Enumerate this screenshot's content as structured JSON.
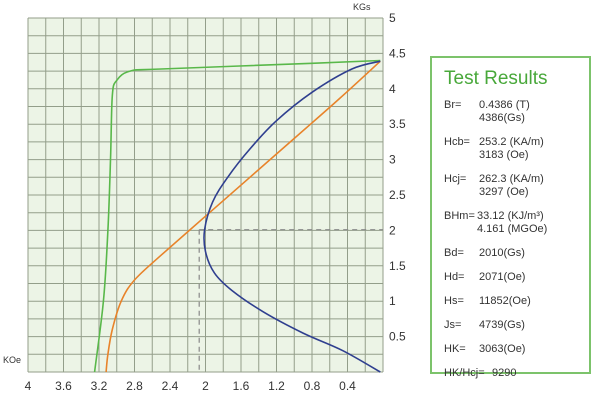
{
  "chart_data": {
    "type": "line",
    "x_axis": {
      "unit": "KOe",
      "range": [
        0,
        4
      ],
      "reversed": true,
      "ticks": [
        "4",
        "3.6",
        "3.2",
        "2.8",
        "2.4",
        "2",
        "1.6",
        "1.2",
        "0.8",
        "0.4"
      ]
    },
    "y_axis": {
      "unit": "KGs",
      "range": [
        0,
        5
      ],
      "position": "right",
      "ticks": [
        "0.5",
        "1",
        "1.5",
        "2",
        "2.5",
        "3",
        "3.5",
        "4",
        "4.5",
        "5"
      ]
    },
    "grid": true,
    "series": [
      {
        "color": "#59b84a",
        "x": [
          0.03,
          0.8,
          2.5,
          2.85,
          3.0,
          3.05,
          3.07,
          3.1,
          3.15,
          3.25
        ],
        "y": [
          4.4,
          4.36,
          4.28,
          4.25,
          4.12,
          3.9,
          3.0,
          2.0,
          1.0,
          0.0
        ]
      },
      {
        "color": "#e8832a",
        "x": [
          0.03,
          0.5,
          1.0,
          1.5,
          2.0,
          2.5,
          2.8,
          2.95,
          3.05,
          3.1,
          3.12
        ],
        "y": [
          4.39,
          3.85,
          3.3,
          2.75,
          2.2,
          1.65,
          1.3,
          1.0,
          0.6,
          0.25,
          0.0
        ]
      },
      {
        "color": "#2f3f8f",
        "x": [
          0.03,
          0.35,
          0.8,
          1.2,
          1.5,
          1.75,
          1.92,
          2.01,
          2.0,
          1.9,
          1.7,
          1.35,
          0.9,
          0.45,
          0.03
        ],
        "y": [
          4.39,
          4.28,
          3.95,
          3.55,
          3.15,
          2.75,
          2.4,
          2.01,
          1.7,
          1.4,
          1.15,
          0.85,
          0.55,
          0.3,
          0.0
        ]
      }
    ],
    "reference_lines": {
      "style": "dashed",
      "color": "#888888",
      "Hd": 2.071,
      "Bd": 2.01
    }
  },
  "test_results": {
    "title": "Test Results",
    "rows": [
      {
        "label": "Br=",
        "values": [
          "0.4386 (T)",
          "4386(Gs)"
        ]
      },
      {
        "label": "Hcb=",
        "values": [
          "253.2 (KA/m)",
          "3183 (Oe)"
        ]
      },
      {
        "label": "Hcj=",
        "values": [
          "262.3 (KA/m)",
          "3297 (Oe)"
        ]
      },
      {
        "label": "BHm=",
        "values": [
          "33.12 (KJ/m³)",
          "4.161 (MGOe)"
        ]
      },
      {
        "label": "Bd=",
        "values": [
          "2010(Gs)"
        ]
      },
      {
        "label": "Hd=",
        "values": [
          "2071(Oe)"
        ]
      },
      {
        "label": "Hs=",
        "values": [
          "11852(Oe)"
        ]
      },
      {
        "label": "Js=",
        "values": [
          "4739(Gs)"
        ]
      },
      {
        "label": "HK=",
        "values": [
          "3063(Oe)"
        ]
      },
      {
        "label": "HK/Hcj=",
        "values": [
          "9290"
        ]
      }
    ]
  },
  "colors": {
    "plot_background": "#ecf4e6",
    "grid_line": "#939e8a",
    "panel_border": "#7cc36b",
    "title_color": "#48a83a"
  }
}
